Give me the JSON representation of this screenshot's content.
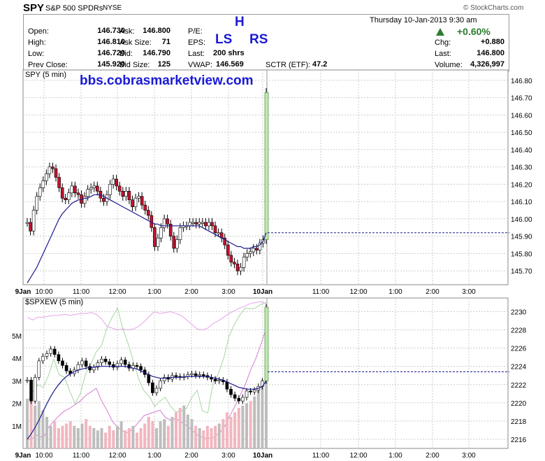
{
  "header": {
    "symbol": "SPY",
    "name": "S&P 500 SPDRs",
    "exchange": "NYSE",
    "copyright": "© StockCharts.com",
    "datetime": "Thursday  10-Jan-2013  9:30 am",
    "change_pct": "+0.60%",
    "up_color": "#2e7d32"
  },
  "quote": {
    "open_label": "Open:",
    "open": "146.730",
    "high_label": "High:",
    "high": "146.810",
    "low_label": "Low:",
    "low": "146.720",
    "prev_label": "Prev Close:",
    "prev": "145.920",
    "ask_label": "Ask:",
    "ask": "146.800",
    "asksize_label": "Ask Size:",
    "asksize": "71",
    "bid_label": "Bid:",
    "bid": "146.790",
    "bidsize_label": "Bid Size:",
    "bidsize": "125",
    "pe_label": "P/E:",
    "pe": "",
    "eps_label": "EPS:",
    "eps": "",
    "last_label": "Last:",
    "last": "200 shrs",
    "vwap_label": "VWAP:",
    "vwap": "146.569",
    "sctr_label": "SCTR (ETF):",
    "sctr": "47.2",
    "chg_label": "Chg:",
    "chg": "+0.880",
    "last2_label": "Last:",
    "last2": "146.800",
    "vol_label": "Volume:",
    "vol": "4,326,997"
  },
  "annotations": {
    "h": "H",
    "ls": "LS",
    "rs": "RS",
    "url": "bbs.cobrasmarketview.com",
    "color": "#1a1ad6"
  },
  "chart_data": [
    {
      "type": "candlestick",
      "title": "SPY (5 min)",
      "ylim": [
        145.62,
        146.86
      ],
      "yticks": [
        "146.80",
        "146.70",
        "146.60",
        "146.50",
        "146.40",
        "146.30",
        "146.20",
        "146.10",
        "146.00",
        "145.90",
        "145.80",
        "145.70"
      ],
      "xticks": [
        "9Jan",
        "10:00",
        "11:00",
        "12:00",
        "1:00",
        "2:00",
        "3:00",
        "10Jan",
        "11:00",
        "12:00",
        "1:00",
        "2:00",
        "3:00"
      ],
      "last_price": 145.92,
      "closes": [
        145.98,
        145.93,
        146.05,
        146.13,
        146.18,
        146.22,
        146.26,
        146.3,
        146.29,
        146.24,
        146.18,
        146.12,
        146.11,
        146.15,
        146.19,
        146.15,
        146.14,
        146.09,
        146.13,
        146.17,
        146.18,
        146.19,
        146.16,
        146.12,
        146.1,
        146.14,
        146.2,
        146.23,
        146.19,
        146.16,
        146.13,
        146.16,
        146.11,
        146.07,
        146.12,
        146.13,
        146.08,
        146.05,
        146.02,
        145.95,
        145.84,
        145.89,
        145.95,
        146.0,
        145.97,
        145.9,
        145.83,
        145.88,
        145.95,
        145.96,
        145.96,
        145.98,
        145.98,
        145.97,
        145.98,
        145.98,
        145.96,
        145.98,
        145.96,
        145.92,
        145.92,
        145.89,
        145.85,
        145.79,
        145.75,
        145.74,
        145.7,
        145.72,
        145.78,
        145.8,
        145.81,
        145.83,
        145.82,
        145.86,
        145.88,
        146.73
      ],
      "ma": [
        145.63,
        145.66,
        145.69,
        145.72,
        145.76,
        145.8,
        145.84,
        145.88,
        145.92,
        145.96,
        146.0,
        146.03,
        146.05,
        146.07,
        146.09,
        146.1,
        146.11,
        146.11,
        146.12,
        146.12,
        146.13,
        146.14,
        146.14,
        146.14,
        146.13,
        146.12,
        146.11,
        146.1,
        146.09,
        146.08,
        146.07,
        146.06,
        146.05,
        146.04,
        146.03,
        146.02,
        146.01,
        146.0,
        145.99,
        145.98,
        145.97,
        145.97,
        145.96,
        145.96,
        145.96,
        145.96,
        145.96,
        145.96,
        145.96,
        145.96,
        145.96,
        145.96,
        145.96,
        145.96,
        145.96,
        145.95,
        145.94,
        145.93,
        145.92,
        145.91,
        145.9,
        145.89,
        145.88,
        145.87,
        145.86,
        145.85,
        145.84,
        145.84,
        145.83,
        145.83,
        145.83,
        145.84,
        145.84,
        145.85,
        145.87,
        145.92
      ]
    },
    {
      "type": "candlestick",
      "title": "$SPXEW (5 min)",
      "ylim": [
        2215,
        2231.5
      ],
      "yticks": [
        "2230",
        "2228",
        "2226",
        "2224",
        "2222",
        "2220",
        "2218",
        "2216"
      ],
      "vol_ticks": [
        "5M",
        "4M",
        "3M",
        "2M",
        "1M"
      ],
      "last_price": 2223.4,
      "closes": [
        2222.5,
        2220.2,
        2222.8,
        2224.6,
        2225.1,
        2225.4,
        2225.9,
        2225.3,
        2224.6,
        2224.1,
        2223.5,
        2223.2,
        2223.6,
        2224.2,
        2224.6,
        2224.0,
        2223.6,
        2223.9,
        2224.4,
        2224.8,
        2224.5,
        2224.2,
        2223.9,
        2224.3,
        2224.7,
        2224.2,
        2223.8,
        2224.1,
        2224.0,
        2223.6,
        2223.1,
        2222.2,
        2221.1,
        2221.6,
        2222.4,
        2222.8,
        2222.6,
        2223.0,
        2222.9,
        2222.8,
        2222.9,
        2223.1,
        2223.2,
        2223.0,
        2223.1,
        2223.0,
        2222.8,
        2222.6,
        2222.4,
        2222.5,
        2222.3,
        2221.5,
        2220.9,
        2220.5,
        2220.2,
        2220.6,
        2221.3,
        2221.2,
        2221.4,
        2221.8,
        2222.4,
        2230.5
      ],
      "ma": [
        2216.0,
        2216.6,
        2217.3,
        2218.1,
        2219.0,
        2219.9,
        2220.7,
        2221.4,
        2222.0,
        2222.5,
        2222.9,
        2223.2,
        2223.4,
        2223.6,
        2223.7,
        2223.8,
        2223.9,
        2223.9,
        2224.0,
        2224.0,
        2224.0,
        2224.0,
        2224.0,
        2224.0,
        2224.0,
        2224.0,
        2223.9,
        2223.8,
        2223.7,
        2223.5,
        2223.3,
        2223.1,
        2222.9,
        2222.8,
        2222.7,
        2222.7,
        2222.7,
        2222.8,
        2222.8,
        2222.8,
        2222.8,
        2222.9,
        2222.9,
        2222.9,
        2222.9,
        2222.9,
        2222.9,
        2222.8,
        2222.7,
        2222.6,
        2222.5,
        2222.3,
        2222.1,
        2221.9,
        2221.7,
        2221.6,
        2221.5,
        2221.5,
        2221.5,
        2221.6,
        2221.8,
        2222.4
      ],
      "volume_m": [
        2.2,
        2.1,
        1.9,
        2.1,
        1.7,
        1.4,
        1.0,
        1.2,
        0.9,
        1.0,
        1.1,
        1.2,
        1.0,
        0.9,
        1.1,
        1.3,
        1.0,
        0.9,
        0.8,
        0.9,
        0.7,
        1.0,
        0.8,
        1.0,
        1.2,
        0.8,
        0.9,
        1.0,
        0.7,
        0.9,
        1.1,
        1.4,
        1.2,
        0.9,
        1.2,
        1.3,
        1.0,
        1.4,
        1.6,
        1.8,
        1.9,
        1.5,
        1.3,
        1.0,
        0.9,
        0.8,
        1.0,
        0.9,
        1.0,
        1.1,
        1.3,
        1.6,
        1.4,
        1.6,
        1.8,
        1.9,
        2.0,
        2.1,
        2.3,
        2.6,
        3.0,
        3.8
      ],
      "overlay1": [
        2229.4,
        2229.1,
        2229.4,
        2229.4,
        2229.5,
        2229.6,
        2229.6,
        2229.7,
        2229.6,
        2229.7,
        2229.8,
        2229.8,
        2229.9,
        2229.7,
        2229.2,
        2228.4,
        2228.2,
        2228.0,
        2228.1,
        2228.0,
        2228.1,
        2228.4,
        2228.9,
        2229.5,
        2230.0,
        2229.8,
        2229.9,
        2230.0,
        2229.8,
        2229.6,
        2229.1,
        2228.6,
        2228.1,
        2228.0,
        2228.2,
        2228.7,
        2229.0,
        2229.4,
        2229.8,
        2230.1,
        2230.4,
        2230.6,
        2230.9,
        2231.0,
        2231.1,
        2230.9
      ],
      "overlay2": [
        2220.0,
        2221.2,
        2222.0,
        2221.7,
        2223.0,
        2224.8,
        2223.1,
        2222.8,
        2221.3,
        2219.9,
        2221.0,
        2223.2,
        2224.3,
        2225.6,
        2226.3,
        2228.2,
        2229.4,
        2230.4,
        2228.1,
        2226.5,
        2224.5,
        2222.6,
        2221.3,
        2220.7,
        2219.6,
        2220.2,
        2220.6,
        2219.6,
        2219.0,
        2219.1,
        2219.4,
        2220.6,
        2221.4,
        2219.1,
        2218.9,
        2222.2,
        2223.2,
        2224.9,
        2227.3,
        2228.6,
        2229.6,
        2230.4,
        2230.3,
        2230.4,
        2230.8,
        2231.0
      ],
      "overlay3": [
        2216.0,
        2216.1,
        2216.5,
        2216.1,
        2217.3,
        2218.0,
        2218.6,
        2219.1,
        2219.4,
        2219.8,
        2220.2,
        2220.8,
        2221.2,
        2221.6,
        2220.2,
        2219.2,
        2218.0,
        2217.3,
        2216.9,
        2216.7,
        2217.2,
        2217.9,
        2218.6,
        2218.8,
        2219.0,
        2219.2,
        2218.4,
        2218.1,
        2218.3,
        2217.9,
        2217.5,
        2217.0,
        2216.5,
        2216.2,
        2216.1,
        2216.2,
        2216.6,
        2217.2,
        2218.4,
        2219.5,
        2220.7,
        2221.9,
        2223.5,
        2224.8,
        2226.4,
        2228.2
      ]
    }
  ]
}
